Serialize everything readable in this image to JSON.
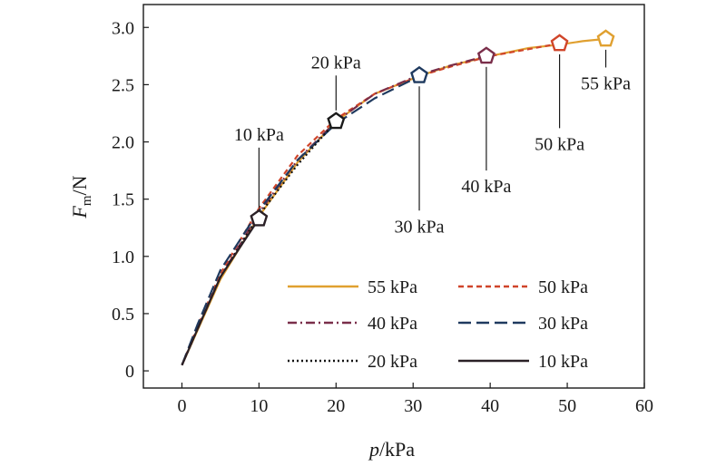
{
  "chart_data": {
    "type": "line",
    "xlabel_var": "p",
    "xlabel_unit": "/kPa",
    "ylabel_var": "F",
    "ylabel_sub": "m",
    "ylabel_unit": "/N",
    "xlim": [
      -5,
      60
    ],
    "ylim": [
      -0.15,
      3.2
    ],
    "xticks": [
      0,
      10,
      20,
      30,
      40,
      50,
      60
    ],
    "yticks": [
      0,
      0.5,
      1.0,
      1.5,
      2.0,
      2.5,
      3.0
    ],
    "xtick_labels": [
      "0",
      "10",
      "20",
      "30",
      "40",
      "50",
      "60"
    ],
    "ytick_labels": [
      "0",
      "0.5",
      "1.0",
      "1.5",
      "2.0",
      "2.5",
      "3.0"
    ],
    "grid": false,
    "legend_position": "bottom-right",
    "series": [
      {
        "name": "55 kPa",
        "color": "#E0A030",
        "style": "solid",
        "x": [
          0,
          2,
          5,
          10,
          15,
          20,
          25,
          31,
          35,
          40,
          45,
          49,
          52,
          55
        ],
        "y": [
          0.05,
          0.35,
          0.8,
          1.35,
          1.82,
          2.18,
          2.42,
          2.58,
          2.67,
          2.75,
          2.82,
          2.85,
          2.88,
          2.9
        ]
      },
      {
        "name": "50 kPa",
        "color": "#D0452A",
        "style": "dash-short",
        "x": [
          0,
          2,
          5,
          10,
          15,
          20,
          25,
          31,
          35,
          40,
          45,
          49
        ],
        "y": [
          0.05,
          0.38,
          0.85,
          1.42,
          1.88,
          2.2,
          2.42,
          2.58,
          2.66,
          2.75,
          2.81,
          2.86
        ]
      },
      {
        "name": "40 kPa",
        "color": "#7A2E4A",
        "style": "dash-dot",
        "x": [
          0,
          2,
          5,
          10,
          15,
          20,
          25,
          31,
          35,
          39.5
        ],
        "y": [
          0.05,
          0.36,
          0.82,
          1.38,
          1.84,
          2.18,
          2.42,
          2.59,
          2.67,
          2.75
        ]
      },
      {
        "name": "30 kPa",
        "color": "#1F3A5F",
        "style": "dash-long",
        "x": [
          0,
          2,
          5,
          10,
          15,
          20,
          25,
          31
        ],
        "y": [
          0.05,
          0.4,
          0.88,
          1.4,
          1.84,
          2.16,
          2.38,
          2.58
        ]
      },
      {
        "name": "20 kPa",
        "color": "#111111",
        "style": "dotted",
        "x": [
          0,
          2,
          5,
          10,
          15,
          20
        ],
        "y": [
          0.05,
          0.36,
          0.82,
          1.36,
          1.8,
          2.18
        ]
      },
      {
        "name": "10 kPa",
        "color": "#2A2026",
        "style": "solid-dark",
        "x": [
          0,
          2,
          5,
          10
        ],
        "y": [
          0.05,
          0.36,
          0.82,
          1.33
        ]
      }
    ],
    "markers": [
      {
        "label": "10 kPa",
        "x": 10,
        "y": 1.33,
        "color": "#2A2026"
      },
      {
        "label": "20 kPa",
        "x": 20,
        "y": 2.18,
        "color": "#1a1a1a"
      },
      {
        "label": "30 kPa",
        "x": 30.8,
        "y": 2.58,
        "color": "#1F3A5F"
      },
      {
        "label": "40 kPa",
        "x": 39.5,
        "y": 2.75,
        "color": "#7A2E4A"
      },
      {
        "label": "50 kPa",
        "x": 49,
        "y": 2.86,
        "color": "#D0452A"
      },
      {
        "label": "55 kPa",
        "x": 55,
        "y": 2.9,
        "color": "#E0A030"
      }
    ]
  }
}
